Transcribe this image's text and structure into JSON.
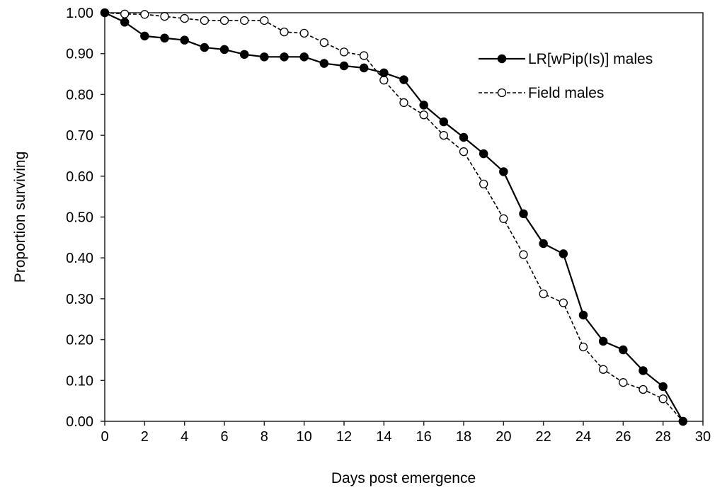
{
  "chart_data": {
    "type": "line",
    "xlabel": "Days post emergence",
    "ylabel": "Proportion surviving",
    "xlim": [
      0,
      30
    ],
    "ylim": [
      0,
      1
    ],
    "x_ticks": [
      "0",
      "2",
      "4",
      "6",
      "8",
      "10",
      "12",
      "14",
      "16",
      "18",
      "20",
      "22",
      "24",
      "26",
      "28",
      "30"
    ],
    "y_ticks": [
      "0.00",
      "0.10",
      "0.20",
      "0.30",
      "0.40",
      "0.50",
      "0.60",
      "0.70",
      "0.80",
      "0.90",
      "1.00"
    ],
    "grid": false,
    "legend_position": "top-right",
    "x": [
      0,
      1,
      2,
      3,
      4,
      5,
      6,
      7,
      8,
      9,
      10,
      11,
      12,
      13,
      14,
      15,
      16,
      17,
      18,
      19,
      20,
      21,
      22,
      23,
      24,
      25,
      26,
      27,
      28,
      29
    ],
    "series": [
      {
        "name": "LR[wPip(Is)] males",
        "style": "solid-filled",
        "color": "#000000",
        "values": [
          1.0,
          0.977,
          0.943,
          0.938,
          0.933,
          0.915,
          0.91,
          0.898,
          0.892,
          0.892,
          0.892,
          0.876,
          0.87,
          0.865,
          0.853,
          0.836,
          0.774,
          0.733,
          0.695,
          0.655,
          0.611,
          0.508,
          0.435,
          0.41,
          0.26,
          0.196,
          0.175,
          0.124,
          0.085,
          0.0
        ]
      },
      {
        "name": "Field males",
        "style": "dashed-open",
        "color": "#000000",
        "values": [
          1.0,
          0.997,
          0.996,
          0.991,
          0.986,
          0.981,
          0.981,
          0.981,
          0.981,
          0.953,
          0.95,
          0.927,
          0.904,
          0.895,
          0.835,
          0.78,
          0.75,
          0.7,
          0.66,
          0.581,
          0.496,
          0.408,
          0.312,
          0.29,
          0.182,
          0.127,
          0.095,
          0.078,
          0.055,
          0.0
        ]
      }
    ]
  }
}
